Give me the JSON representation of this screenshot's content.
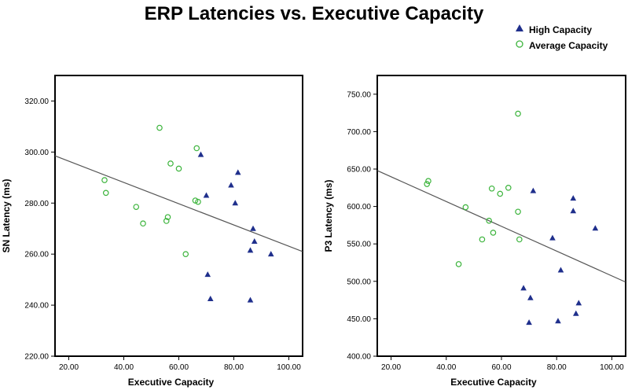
{
  "title": "ERP Latencies vs. Executive Capacity",
  "legend": {
    "high": "High Capacity",
    "average": "Average Capacity"
  },
  "colors": {
    "high": "#1f2f8c",
    "average": "#3cb43c",
    "fit": "#555555"
  },
  "chart_data": [
    {
      "type": "scatter",
      "xlabel": "Executive Capacity",
      "ylabel": "SN Latency (ms)",
      "xlim": [
        15,
        105
      ],
      "ylim": [
        220,
        330
      ],
      "xticks": [
        20,
        40,
        60,
        80,
        100
      ],
      "xtick_labels": [
        "20.00",
        "40.00",
        "60.00",
        "80.00",
        "100.00"
      ],
      "yticks": [
        220,
        240,
        260,
        280,
        300,
        320
      ],
      "ytick_labels": [
        "220.00",
        "240.00",
        "260.00",
        "280.00",
        "300.00",
        "320.00"
      ],
      "fit_line": [
        [
          15,
          298.5
        ],
        [
          105,
          261
        ]
      ],
      "series": [
        {
          "name": "High Capacity",
          "points": [
            [
              68,
              299
            ],
            [
              81.5,
              292
            ],
            [
              79,
              287
            ],
            [
              70,
              283
            ],
            [
              80.5,
              280
            ],
            [
              87,
              270
            ],
            [
              87.5,
              265
            ],
            [
              86,
              261.5
            ],
            [
              93.5,
              260
            ],
            [
              70.5,
              252
            ],
            [
              71.5,
              242.5
            ],
            [
              86,
              242
            ]
          ]
        },
        {
          "name": "Average Capacity",
          "points": [
            [
              53,
              309.5
            ],
            [
              66.5,
              301.5
            ],
            [
              57,
              295.5
            ],
            [
              60,
              293.5
            ],
            [
              33,
              289
            ],
            [
              33.5,
              284
            ],
            [
              66,
              281
            ],
            [
              67,
              280.5
            ],
            [
              44.5,
              278.5
            ],
            [
              56,
              274.5
            ],
            [
              55.5,
              273
            ],
            [
              47,
              272
            ],
            [
              62.5,
              260
            ]
          ]
        }
      ]
    },
    {
      "type": "scatter",
      "xlabel": "Executive Capacity",
      "ylabel": "P3 Latency (ms)",
      "xlim": [
        15,
        105
      ],
      "ylim": [
        400,
        775
      ],
      "xticks": [
        20,
        40,
        60,
        80,
        100
      ],
      "xtick_labels": [
        "20.00",
        "40.00",
        "60.00",
        "80.00",
        "100.00"
      ],
      "yticks": [
        400,
        450,
        500,
        550,
        600,
        650,
        700,
        750
      ],
      "ytick_labels": [
        "400.00",
        "450.00",
        "500.00",
        "550.00",
        "600.00",
        "650.00",
        "700.00",
        "750.00"
      ],
      "fit_line": [
        [
          15,
          648
        ],
        [
          105,
          499
        ]
      ],
      "series": [
        {
          "name": "High Capacity",
          "points": [
            [
              71.5,
              621
            ],
            [
              86,
              611
            ],
            [
              86,
              594
            ],
            [
              94,
              571
            ],
            [
              78.5,
              558
            ],
            [
              81.5,
              515
            ],
            [
              68,
              491
            ],
            [
              70.5,
              478
            ],
            [
              88,
              471
            ],
            [
              87,
              457
            ],
            [
              80.5,
              447
            ],
            [
              70,
              445
            ]
          ]
        },
        {
          "name": "Average Capacity",
          "points": [
            [
              66,
              724
            ],
            [
              33.5,
              634
            ],
            [
              33,
              630
            ],
            [
              62.5,
              625
            ],
            [
              56.5,
              624
            ],
            [
              59.5,
              617
            ],
            [
              66,
              593
            ],
            [
              47,
              599
            ],
            [
              55.5,
              581
            ],
            [
              57,
              565
            ],
            [
              53,
              556
            ],
            [
              66.5,
              556
            ],
            [
              44.5,
              523
            ]
          ]
        }
      ]
    }
  ]
}
